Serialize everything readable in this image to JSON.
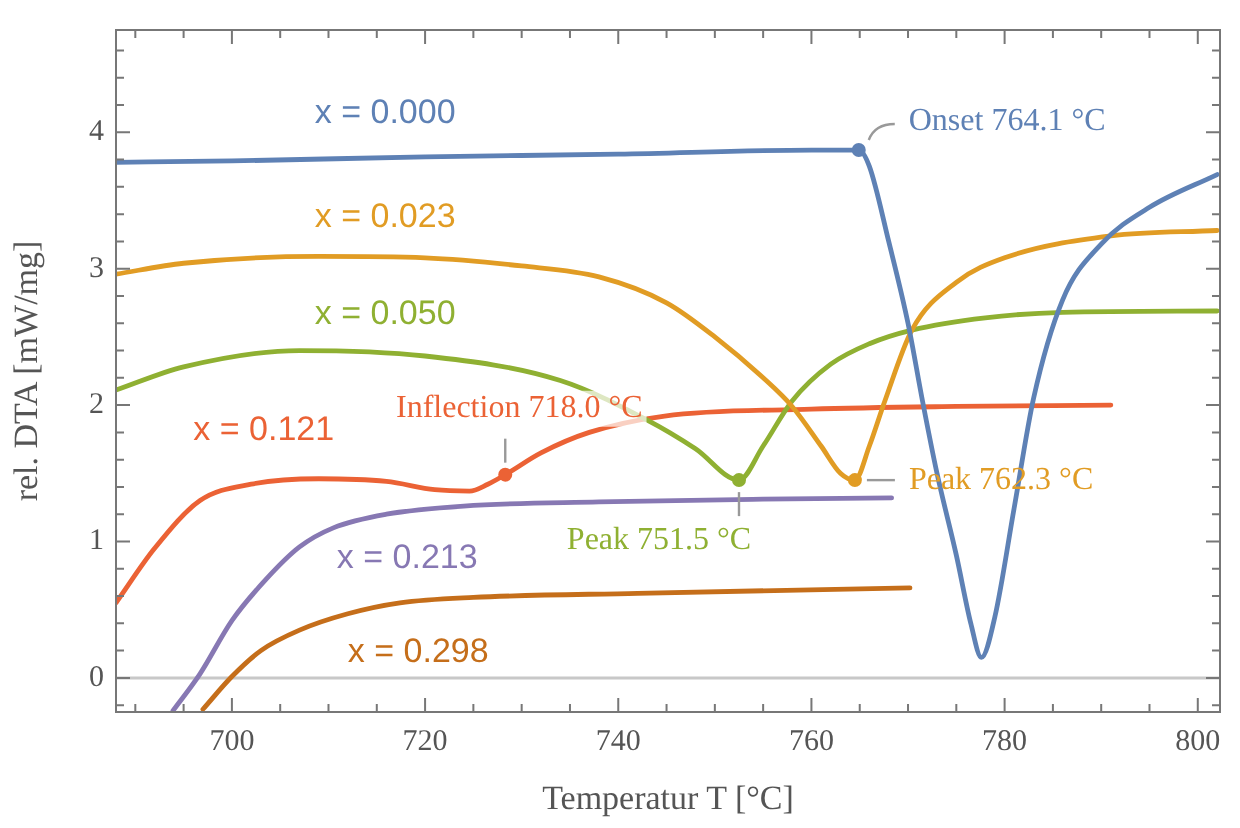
{
  "chart_data": {
    "type": "line",
    "xlabel": "Temperatur T [°C]",
    "ylabel": "rel. DTA [mW/mg]",
    "xlim": [
      688,
      802.3
    ],
    "xticks": [
      700,
      720,
      740,
      760,
      780,
      800
    ],
    "ylim": [
      -0.25,
      4.75
    ],
    "yticks": [
      0,
      1,
      2,
      3,
      4
    ],
    "grid": false,
    "legend": false,
    "marker": "none",
    "line_style": "solid",
    "series": [
      {
        "name": "x = 0.000",
        "color": "#5e81b5",
        "x": [
          688,
          700,
          720,
          740,
          760,
          764.9,
          766,
          768,
          770,
          771.5,
          773,
          775,
          776.5,
          777.6,
          779,
          781,
          783,
          786,
          790,
          795,
          802
        ],
        "values": [
          3.78,
          3.79,
          3.82,
          3.84,
          3.87,
          3.87,
          3.75,
          3.2,
          2.6,
          2.03,
          1.5,
          0.9,
          0.4,
          0.15,
          0.45,
          1.25,
          2.05,
          2.77,
          3.18,
          3.45,
          3.69
        ]
      },
      {
        "name": "x = 0.023",
        "color": "#e19c24",
        "x": [
          688,
          695,
          709,
          720,
          730,
          738,
          745,
          750,
          755,
          758,
          761,
          763,
          764.5,
          766,
          767.6,
          770.4,
          775,
          780,
          791,
          802
        ],
        "values": [
          2.96,
          3.04,
          3.09,
          3.08,
          3.02,
          2.94,
          2.75,
          2.5,
          2.2,
          1.99,
          1.7,
          1.5,
          1.45,
          1.7,
          2.03,
          2.55,
          2.9,
          3.08,
          3.24,
          3.28
        ]
      },
      {
        "name": "x = 0.050",
        "color": "#8fb032",
        "x": [
          688,
          695,
          707,
          720,
          734,
          743,
          748,
          752.5,
          755,
          758,
          762,
          766,
          770.4,
          778,
          786,
          802
        ],
        "values": [
          2.11,
          2.28,
          2.4,
          2.36,
          2.18,
          1.89,
          1.68,
          1.45,
          1.7,
          2.03,
          2.3,
          2.45,
          2.55,
          2.64,
          2.68,
          2.69
        ]
      },
      {
        "name": "x = 0.121",
        "color": "#eb6235",
        "x": [
          688,
          692,
          696.7,
          702,
          709,
          716,
          721,
          724.6,
          726.5,
          728.3,
          732,
          737,
          744.8,
          760,
          775,
          791
        ],
        "values": [
          0.55,
          0.95,
          1.3,
          1.42,
          1.46,
          1.44,
          1.38,
          1.37,
          1.42,
          1.49,
          1.65,
          1.8,
          1.92,
          1.97,
          1.99,
          2.0
        ]
      },
      {
        "name": "x = 0.213",
        "color": "#8778b3",
        "x": [
          693.9,
          696.7,
          700,
          703.5,
          707,
          710.5,
          716,
          724,
          738,
          755,
          768.3
        ],
        "values": [
          -0.24,
          0.03,
          0.42,
          0.72,
          0.96,
          1.1,
          1.2,
          1.26,
          1.29,
          1.31,
          1.32
        ]
      },
      {
        "name": "x = 0.298",
        "color": "#c56e1a",
        "x": [
          697,
          700,
          703,
          707,
          712,
          717.4,
          725,
          742,
          770.2
        ],
        "values": [
          -0.23,
          0.01,
          0.2,
          0.35,
          0.47,
          0.55,
          0.59,
          0.62,
          0.66
        ]
      }
    ],
    "ref_lines": [
      {
        "axis": "y",
        "value": 0,
        "color": "#c8c8c8"
      }
    ],
    "annotations": [
      {
        "text": "Onset 764.1 °C",
        "x": 764.9,
        "y": 3.87
      },
      {
        "text": "Inflection 718.0 °C",
        "x": 728.3,
        "y": 1.49
      },
      {
        "text": "Peak 751.5 °C",
        "x": 752.5,
        "y": 1.45
      },
      {
        "text": "Peak 762.3 °C",
        "x": 764.5,
        "y": 1.45
      }
    ]
  }
}
